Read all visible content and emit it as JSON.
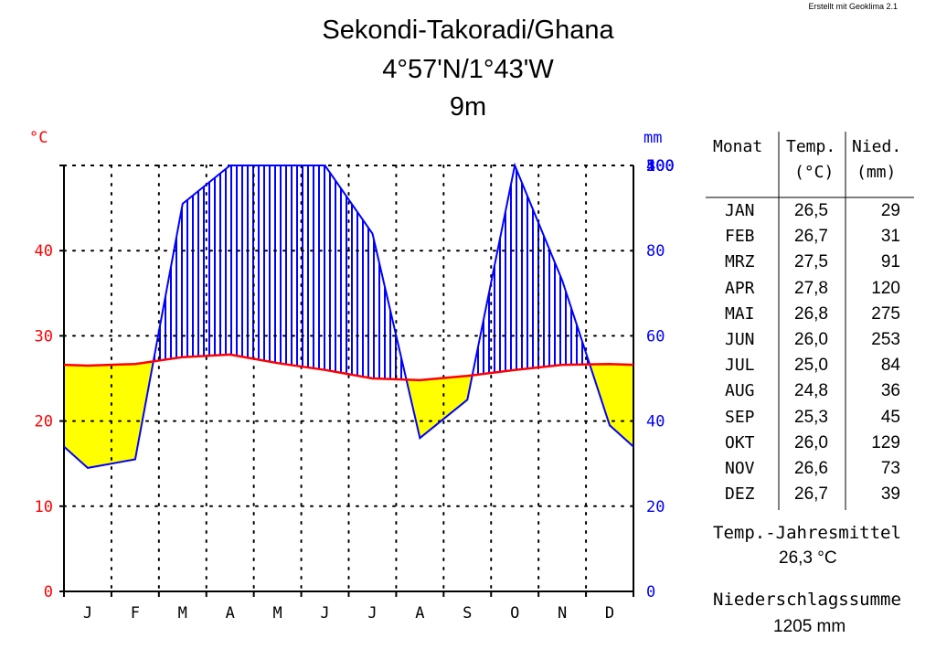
{
  "credit": "Erstellt mit Geoklima 2.1",
  "title": {
    "station": "Sekondi-Takoradi/Ghana",
    "coords": "4°57'N/1°43'W",
    "elevation": "9m"
  },
  "colors": {
    "temperature": "#ff0000",
    "precipitation": "#0000ff",
    "arid": "#ffff00",
    "humid": "#0000ff",
    "left_axis": "#ff0000",
    "right_axis": "#0000ff"
  },
  "chart_data": {
    "type": "line",
    "chart_kind": "climate diagram (Walter-Lieth)",
    "categories": [
      "J",
      "F",
      "M",
      "A",
      "M",
      "J",
      "J",
      "A",
      "S",
      "O",
      "N",
      "D"
    ],
    "series": [
      {
        "name": "Temp.",
        "unit": "°C",
        "values": [
          26.5,
          26.7,
          27.5,
          27.8,
          26.8,
          26.0,
          25.0,
          24.8,
          25.3,
          26.0,
          26.6,
          26.7
        ]
      },
      {
        "name": "Nied.",
        "unit": "mm",
        "values": [
          29,
          31,
          91,
          120,
          275,
          253,
          84,
          36,
          45,
          129,
          73,
          39
        ]
      }
    ],
    "left_axis": {
      "label": "°C",
      "ticks": [
        "0",
        "10",
        "20",
        "30",
        "40"
      ],
      "ylim": [
        0,
        50
      ]
    },
    "right_axis": {
      "label": "mm",
      "ticks": [
        "0",
        "20",
        "40",
        "60",
        "80",
        "100",
        "200",
        "300",
        "400",
        "500"
      ],
      "ylim": [
        0,
        500
      ],
      "scale_break": 100
    },
    "grid": true
  },
  "table": {
    "headers": [
      {
        "line1": "Monat",
        "line2": ""
      },
      {
        "line1": "Temp.",
        "line2": "(°C)"
      },
      {
        "line1": "Nied.",
        "line2": "(mm)"
      }
    ],
    "rows": [
      {
        "month": "JAN",
        "temp": "26,5",
        "precip": "29"
      },
      {
        "month": "FEB",
        "temp": "26,7",
        "precip": "31"
      },
      {
        "month": "MRZ",
        "temp": "27,5",
        "precip": "91"
      },
      {
        "month": "APR",
        "temp": "27,8",
        "precip": "120"
      },
      {
        "month": "MAI",
        "temp": "26,8",
        "precip": "275"
      },
      {
        "month": "JUN",
        "temp": "26,0",
        "precip": "253"
      },
      {
        "month": "JUL",
        "temp": "25,0",
        "precip": "84"
      },
      {
        "month": "AUG",
        "temp": "24,8",
        "precip": "36"
      },
      {
        "month": "SEP",
        "temp": "25,3",
        "precip": "45"
      },
      {
        "month": "OKT",
        "temp": "26,0",
        "precip": "129"
      },
      {
        "month": "NOV",
        "temp": "26,6",
        "precip": "73"
      },
      {
        "month": "DEZ",
        "temp": "26,7",
        "precip": "39"
      }
    ]
  },
  "summary": {
    "temp_label": "Temp.-Jahresmittel",
    "temp_value": "26,3 °C",
    "precip_label": "Niederschlagssumme",
    "precip_value": "1205 mm"
  }
}
